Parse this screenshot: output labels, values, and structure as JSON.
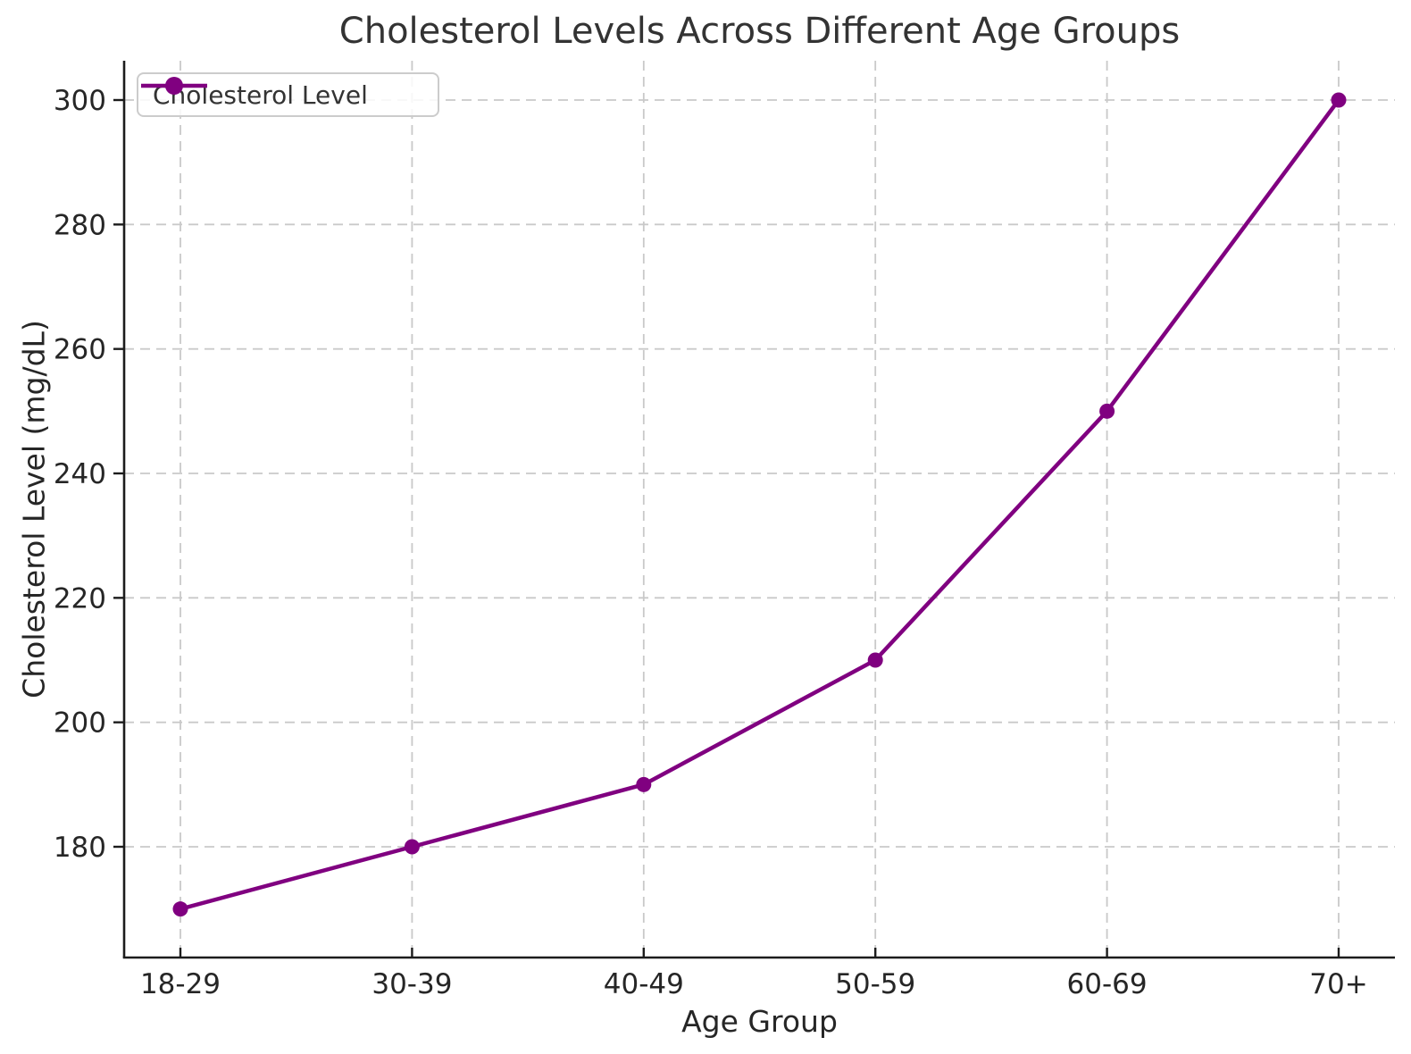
{
  "chart_data": {
    "type": "line",
    "title": "Cholesterol Levels Across Different Age Groups",
    "xlabel": "Age Group",
    "ylabel": "Cholesterol Level (mg/dL)",
    "categories": [
      "18-29",
      "30-39",
      "40-49",
      "50-59",
      "60-69",
      "70+"
    ],
    "series": [
      {
        "name": "Cholesterol Level",
        "values": [
          170,
          180,
          190,
          210,
          250,
          300
        ],
        "color": "#800080",
        "marker": "circle"
      }
    ],
    "y_ticks": [
      180,
      200,
      220,
      240,
      260,
      280,
      300
    ],
    "ylim": [
      162,
      306
    ],
    "grid": true,
    "grid_style": "dashed",
    "grid_color": "#c9c9c9",
    "legend_position": "upper left",
    "legend_label": "Cholesterol Level",
    "accent_color": "#800080",
    "text_color": "#262626",
    "spine_color": "#1c1c1c"
  }
}
